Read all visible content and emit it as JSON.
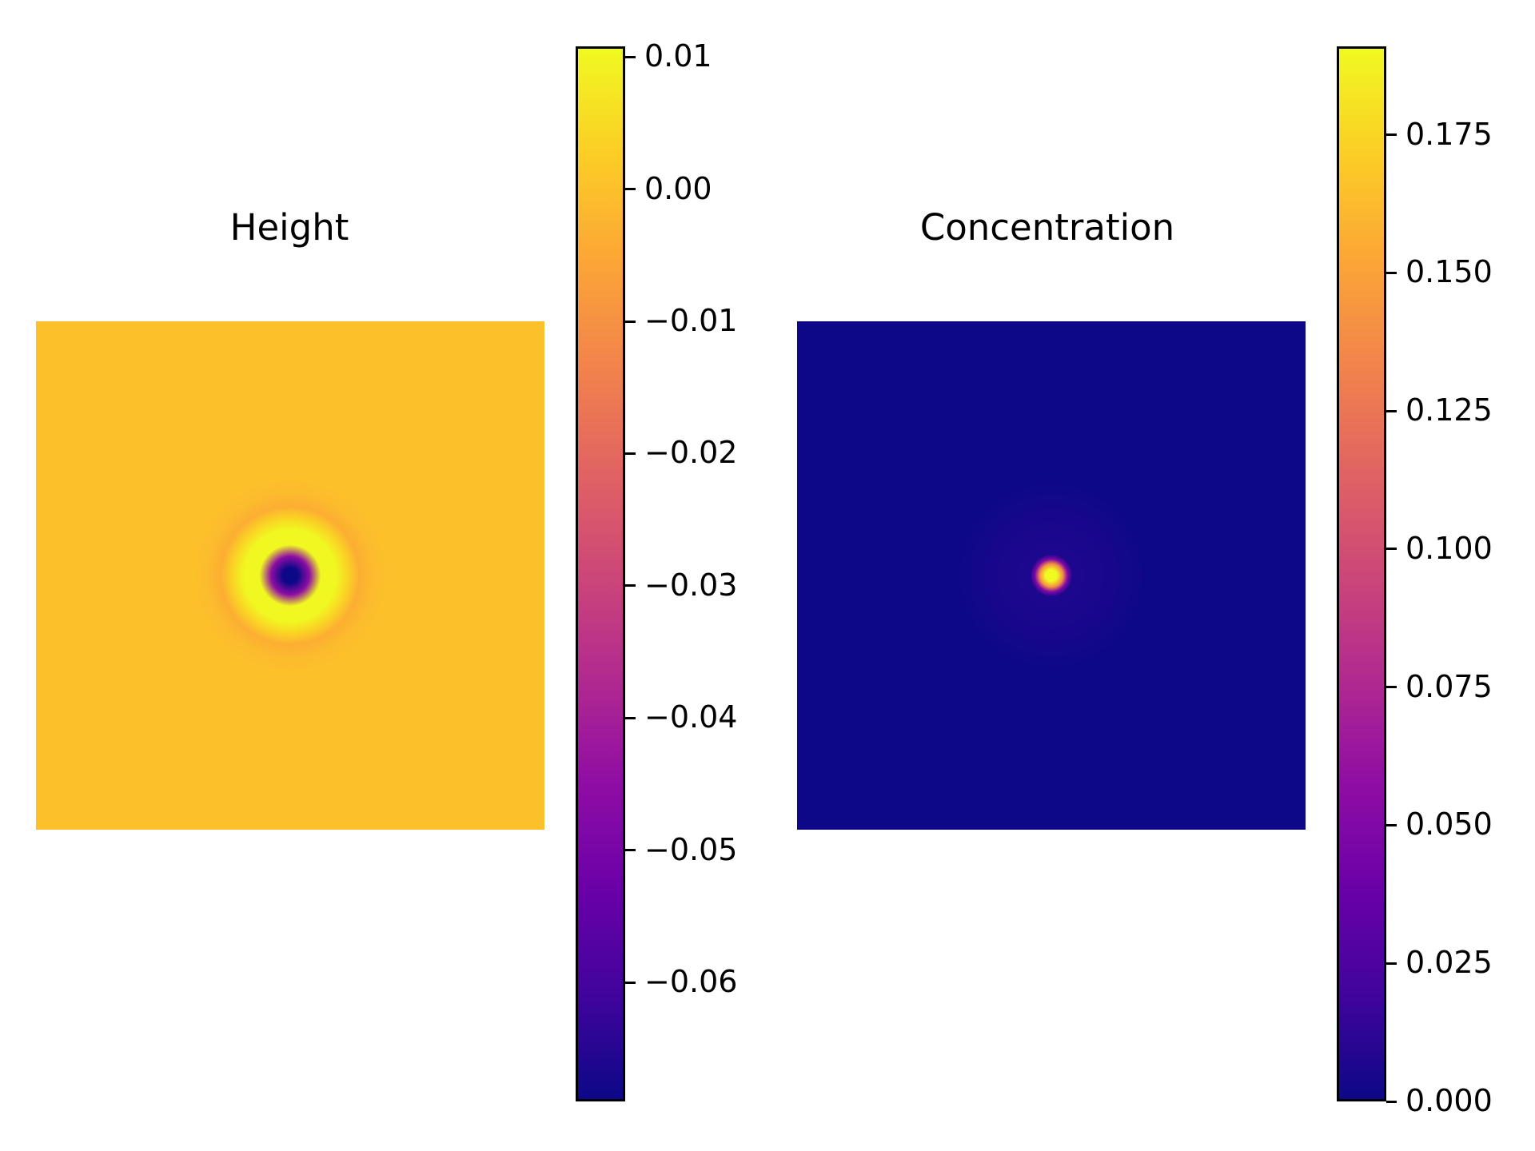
{
  "chart_data": [
    {
      "type": "heatmap",
      "title": "Height",
      "colormap": "plasma",
      "colorbar": {
        "range": [
          -0.069,
          0.0108
        ],
        "ticks": [
          0.01,
          0.0,
          -0.01,
          -0.02,
          -0.03,
          -0.04,
          -0.05,
          -0.06
        ],
        "tick_labels": [
          "0.01",
          "0.00",
          "−0.01",
          "−0.02",
          "−0.03",
          "−0.04",
          "−0.05",
          "−0.06"
        ]
      },
      "field": {
        "background": 0.0,
        "center_value": -0.069,
        "ring_value": 0.0105,
        "outer_dip_value": -0.0035
      },
      "axes_visible": false
    },
    {
      "type": "heatmap",
      "title": "Concentration",
      "colormap": "plasma",
      "colorbar": {
        "range": [
          0.0,
          0.191
        ],
        "ticks": [
          0.175,
          0.15,
          0.125,
          0.1,
          0.075,
          0.05,
          0.025,
          0.0
        ],
        "tick_labels": [
          "0.175",
          "0.150",
          "0.125",
          "0.100",
          "0.075",
          "0.050",
          "0.025",
          "0.000"
        ]
      },
      "field": {
        "background": 0.0,
        "center_value": 0.191,
        "halo_value": 0.006
      },
      "axes_visible": false
    }
  ]
}
